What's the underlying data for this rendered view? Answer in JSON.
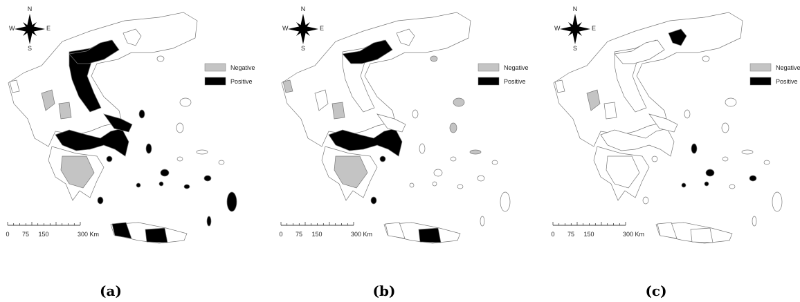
{
  "panels": [
    {
      "compass": {
        "n": "N",
        "s": "S",
        "e": "E",
        "w": "W"
      },
      "legend": [
        "Negative",
        "Positive"
      ],
      "scale": [
        "0",
        "75",
        "150",
        "300 Km"
      ],
      "caption": "(a)"
    },
    {
      "compass": {
        "n": "N",
        "s": "S",
        "e": "E",
        "w": "W"
      },
      "legend": [
        "Negative",
        "Positive"
      ],
      "scale": [
        "0",
        "75",
        "150",
        "300 Km"
      ],
      "caption": "(b)"
    },
    {
      "compass": {
        "n": "N",
        "s": "S",
        "e": "E",
        "w": "W"
      },
      "legend": [
        "Negative",
        "Positive"
      ],
      "scale": [
        "0",
        "75",
        "150",
        "300 Km"
      ],
      "caption": "(c)"
    }
  ]
}
